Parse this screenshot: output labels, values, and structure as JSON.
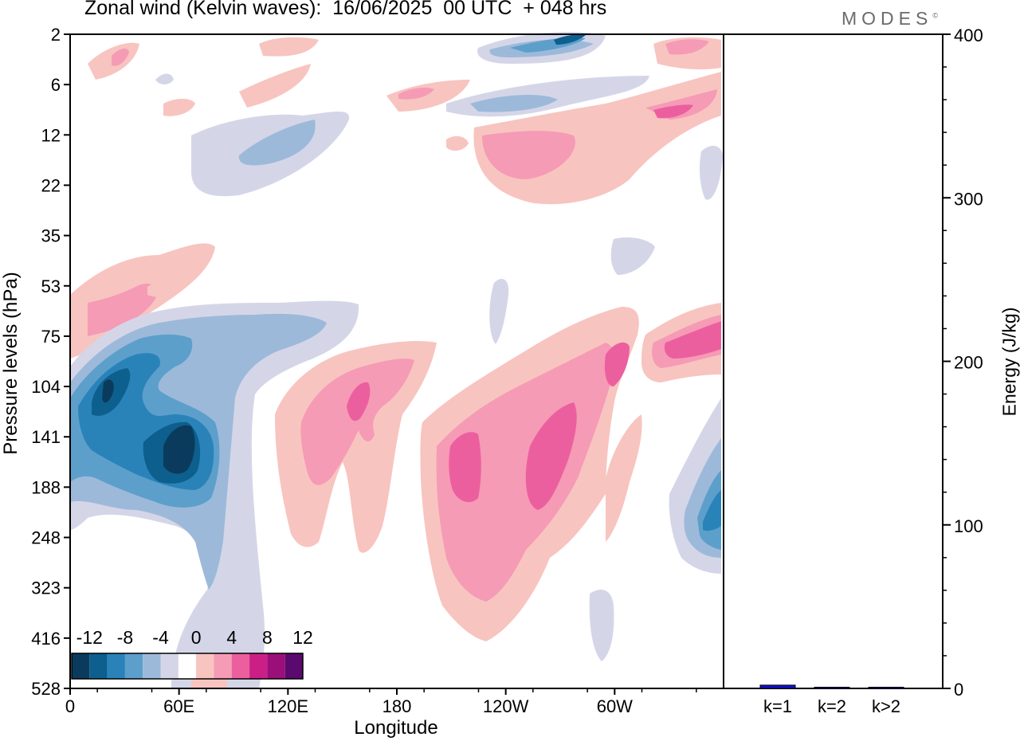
{
  "title": "Zonal wind (Kelvin waves):  16/06/2025  00 UTC  + 048 hrs",
  "logo": "MODES",
  "logo_mark": "©",
  "chart_data": [
    {
      "type": "heatmap",
      "xlabel": "Longitude",
      "ylabel": "Pressure levels (hPa)",
      "x_ticks": [
        "0",
        "60E",
        "120E",
        "180",
        "120W",
        "60W"
      ],
      "y_ticks": [
        "2",
        "6",
        "12",
        "22",
        "35",
        "53",
        "75",
        "104",
        "141",
        "188",
        "248",
        "323",
        "416",
        "528"
      ],
      "colorbar": {
        "labels": [
          "-12",
          "-8",
          "-4",
          "0",
          "4",
          "8",
          "12"
        ],
        "colors": [
          "#0b3b5c",
          "#0d5f8e",
          "#2a83b8",
          "#5d9fcb",
          "#9db9da",
          "#d4d6e8",
          "#ffffff",
          "#f8c4c0",
          "#f59bb5",
          "#ec5f9f",
          "#cc1f86",
          "#9a0f7a",
          "#5a0a6e"
        ]
      },
      "palette": {
        "neg1": "#d4d6e8",
        "neg2": "#9db9da",
        "neg3": "#5d9fcb",
        "neg4": "#2a83b8",
        "neg5": "#0d5f8e",
        "neg6": "#0b3b5c",
        "pos1": "#f8c4c0",
        "pos2": "#f59bb5",
        "pos3": "#ec5f9f"
      }
    },
    {
      "type": "bar",
      "ylabel": "Energy (J/kg)",
      "ylim": [
        0,
        400
      ],
      "y_ticks": [
        "0",
        "100",
        "200",
        "300",
        "400"
      ],
      "categories": [
        "k=1",
        "k=2",
        "k>2"
      ],
      "values": [
        2,
        0.2,
        0.5
      ],
      "bar_color": "#1010d0"
    }
  ]
}
